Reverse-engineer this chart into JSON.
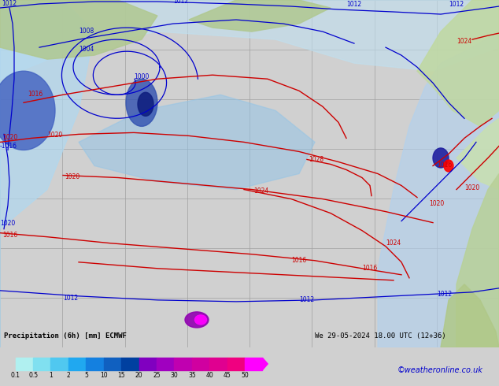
{
  "title": "Precipitation (6h) [mm] ECMWF",
  "subtitle": "We 29-05-2024 18.00 UTC (12+36)",
  "watermark": "©weatheronline.co.uk",
  "colorbar_levels": [
    0.1,
    0.5,
    1,
    2,
    5,
    10,
    15,
    20,
    25,
    30,
    35,
    40,
    45,
    50
  ],
  "colorbar_colors": [
    "#b0f0f0",
    "#80e0f0",
    "#50c8f0",
    "#20a8f0",
    "#1480e0",
    "#1060c0",
    "#0040a0",
    "#8000c0",
    "#a000c0",
    "#c000b0",
    "#d000a0",
    "#e00090",
    "#f00080",
    "#ff00ff"
  ],
  "background_color": "#d0d0d0",
  "map_background": "#c8c8c8",
  "grid_color": "#a0a0a0",
  "blue_contour_color": "#0000cd",
  "red_contour_color": "#cd0000",
  "land_color_low": "#b8d8a0",
  "land_color_high": "#d0e8b0",
  "ocean_precip_light": "#c0e8f8",
  "ocean_precip_medium": "#80c0f0",
  "ocean_precip_heavy": "#4080d0",
  "ocean_precip_vheavy": "#200080",
  "fig_width": 6.34,
  "fig_height": 4.9,
  "dpi": 100
}
